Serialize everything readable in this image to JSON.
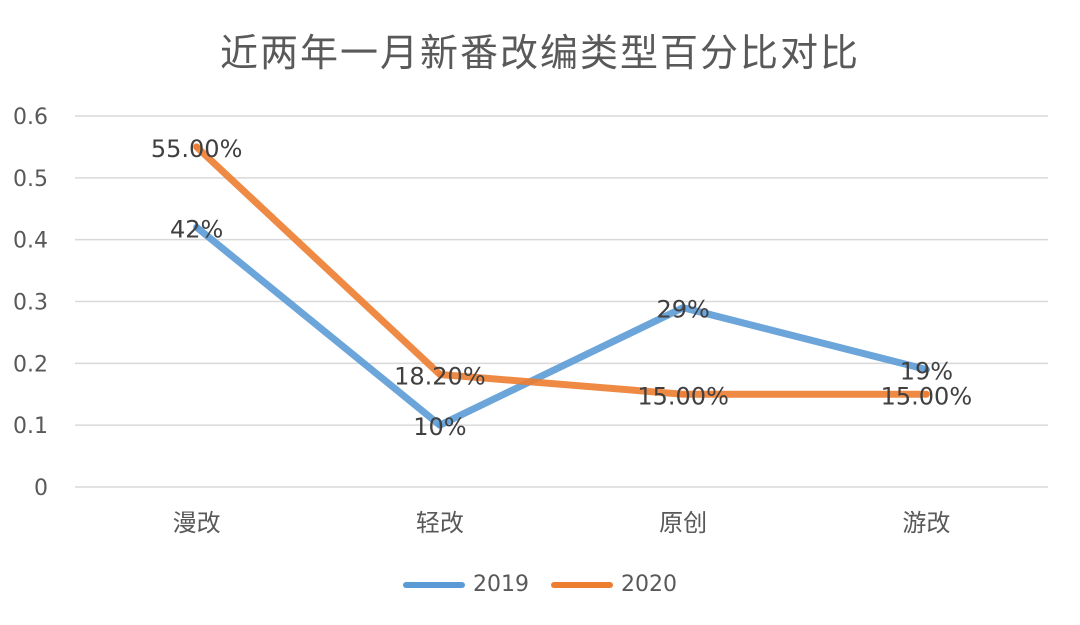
{
  "chart_data": {
    "type": "line",
    "title": "近两年一月新番改编类型百分比对比",
    "categories": [
      "漫改",
      "轻改",
      "原创",
      "游改"
    ],
    "ylim": [
      0,
      0.6
    ],
    "yticks": [
      "0",
      "0.1",
      "0.2",
      "0.3",
      "0.4",
      "0.5",
      "0.6"
    ],
    "grid": true,
    "legend_position": "bottom",
    "series": [
      {
        "name": "2019",
        "values": [
          0.42,
          0.1,
          0.29,
          0.19
        ],
        "labels": [
          "42%",
          "10%",
          "29%",
          "19%"
        ],
        "color": "#5B9BD5"
      },
      {
        "name": "2020",
        "values": [
          0.55,
          0.182,
          0.15,
          0.15
        ],
        "labels": [
          "55.00%",
          "18.20%",
          "15.00%",
          "15.00%"
        ],
        "color": "#ED7D31"
      }
    ]
  }
}
